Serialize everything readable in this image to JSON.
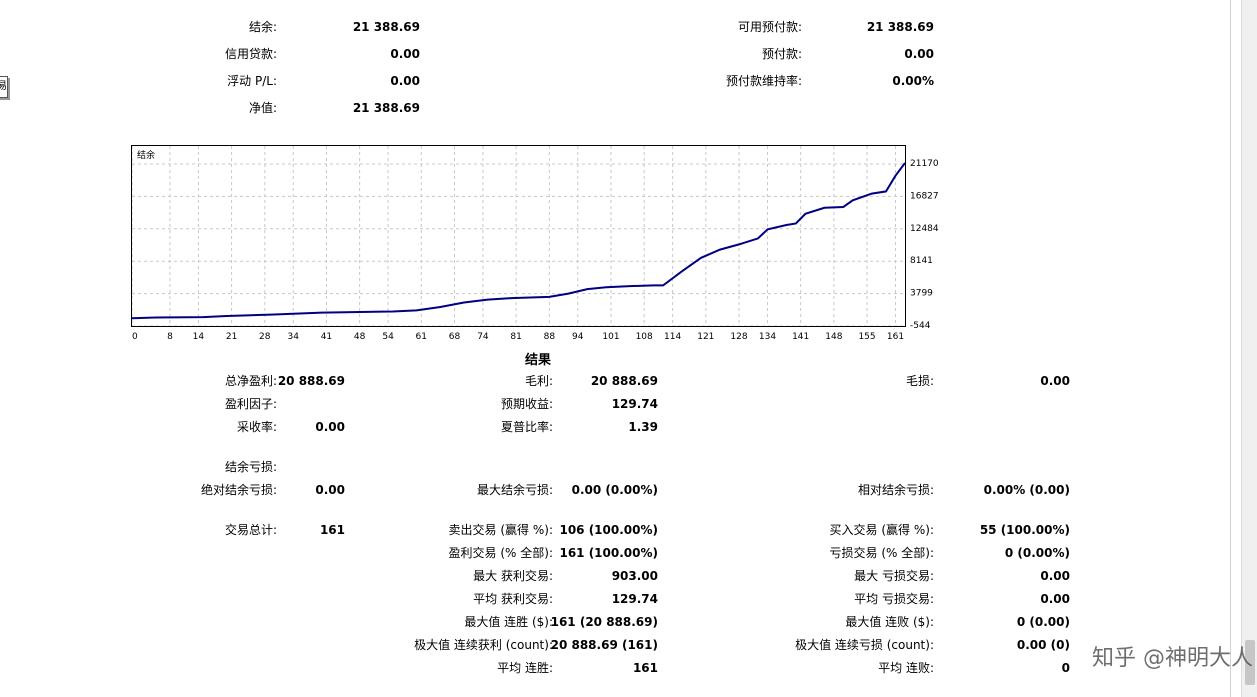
{
  "account_summary": {
    "balance_label": "结余:",
    "balance_value": "21 388.69",
    "credit_label": "信用贷款:",
    "credit_value": "0.00",
    "floating_label": "浮动 P/L:",
    "floating_value": "0.00",
    "equity_label": "净值:",
    "equity_value": "21 388.69",
    "free_margin_label": "可用预付款:",
    "free_margin_value": "21 388.69",
    "margin_label": "预付款:",
    "margin_value": "0.00",
    "margin_level_label": "预付款维持率:",
    "margin_level_value": "0.00%"
  },
  "left_fragment": "易",
  "chart_data": {
    "type": "line",
    "title": "结余",
    "x_ticks": [
      0,
      8,
      14,
      21,
      28,
      34,
      41,
      48,
      54,
      61,
      68,
      74,
      81,
      88,
      94,
      101,
      108,
      114,
      121,
      128,
      134,
      141,
      148,
      155,
      161
    ],
    "y_ticks": [
      -544,
      3799,
      8141,
      12484,
      16827,
      21170
    ],
    "xlim": [
      0,
      163
    ],
    "ylim": [
      -544,
      21170
    ],
    "grid": true,
    "series": [
      {
        "color": "#000080",
        "x": [
          0,
          5,
          15,
          20,
          30,
          40,
          45,
          55,
          60,
          65,
          70,
          75,
          80,
          88,
          92,
          96,
          100,
          105,
          110,
          112,
          116,
          120,
          124,
          128,
          132,
          134,
          138,
          140,
          142,
          146,
          150,
          152,
          156,
          159,
          161,
          163
        ],
        "y": [
          500,
          600,
          650,
          800,
          1000,
          1250,
          1300,
          1400,
          1550,
          2000,
          2600,
          3000,
          3200,
          3350,
          3800,
          4400,
          4650,
          4800,
          4900,
          4900,
          6800,
          8600,
          9700,
          10400,
          11200,
          12400,
          13000,
          13200,
          14500,
          15300,
          15400,
          16300,
          17200,
          17500,
          19600,
          21300
        ]
      }
    ]
  },
  "results": {
    "section_title": "结果",
    "total_net_profit_label": "总净盈利:",
    "total_net_profit_value": "20 888.69",
    "gross_profit_label": "毛利:",
    "gross_profit_value": "20 888.69",
    "gross_loss_label": "毛损:",
    "gross_loss_value": "0.00",
    "profit_factor_label": "盈利因子:",
    "expected_payoff_label": "预期收益:",
    "expected_payoff_value": "129.74",
    "recovery_factor_label": "采收率:",
    "recovery_factor_value": "0.00",
    "sharpe_label": "夏普比率:",
    "sharpe_value": "1.39",
    "balance_drawdown_label": "结余亏损:",
    "abs_drawdown_label": "绝对结余亏损:",
    "abs_drawdown_value": "0.00",
    "max_drawdown_label": "最大结余亏损:",
    "max_drawdown_value": "0.00 (0.00%)",
    "rel_drawdown_label": "相对结余亏损:",
    "rel_drawdown_value": "0.00% (0.00)",
    "total_trades_label": "交易总计:",
    "total_trades_value": "161",
    "short_trades_label": "卖出交易 (赢得 %):",
    "short_trades_value": "106 (100.00%)",
    "long_trades_label": "买入交易 (赢得 %):",
    "long_trades_value": "55 (100.00%)",
    "profit_trades_label": "盈利交易 (% 全部):",
    "profit_trades_value": "161 (100.00%)",
    "loss_trades_label": "亏损交易 (% 全部):",
    "loss_trades_value": "0 (0.00%)",
    "largest_profit_label": "最大 获利交易:",
    "largest_profit_value": "903.00",
    "largest_loss_label": "最大 亏损交易:",
    "largest_loss_value": "0.00",
    "avg_profit_label": "平均 获利交易:",
    "avg_profit_value": "129.74",
    "avg_loss_label": "平均 亏损交易:",
    "avg_loss_value": "0.00",
    "max_consec_wins_label": "最大值 连胜 ($):",
    "max_consec_wins_value": "161 (20 888.69)",
    "max_consec_losses_label": "最大值 连败 ($):",
    "max_consec_losses_value": "0 (0.00)",
    "max_consec_profit_label": "极大值 连续获利 (count):",
    "max_consec_profit_value": "20 888.69 (161)",
    "max_consec_loss_label": "极大值 连续亏损 (count):",
    "max_consec_loss_value": "0.00 (0)",
    "avg_consec_wins_label": "平均 连胜:",
    "avg_consec_wins_value": "161",
    "avg_consec_losses_label": "平均 连败:",
    "avg_consec_losses_value": "0"
  },
  "watermark": "知乎 @神明大人"
}
